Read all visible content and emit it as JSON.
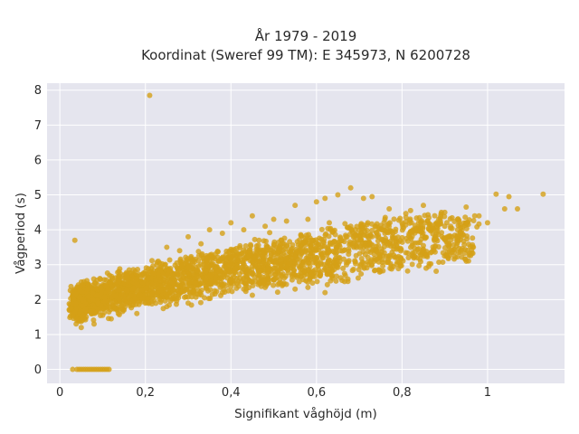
{
  "chart_data": {
    "type": "scatter",
    "title_line1": "År 1979 - 2019",
    "title_line2": "Koordinat (Sweref 99 TM): E 345973, N 6200728",
    "xlabel": "Signifikant våghöjd (m)",
    "ylabel": "Vågperiod (s)",
    "xlim": [
      -0.03,
      1.18
    ],
    "ylim": [
      -0.4,
      8.2
    ],
    "x_ticks": [
      0,
      0.2,
      0.4,
      0.6,
      0.8,
      1.0
    ],
    "x_tick_labels": [
      "0",
      "0,2",
      "0,4",
      "0,6",
      "0,8",
      "1"
    ],
    "y_ticks": [
      0,
      1,
      2,
      3,
      4,
      5,
      6,
      7,
      8
    ],
    "y_tick_labels": [
      "0",
      "1",
      "2",
      "3",
      "4",
      "5",
      "6",
      "7",
      "8"
    ],
    "grid": true,
    "marker_color": "#D4A017",
    "plot_bg": "#E5E5EE",
    "points": [
      [
        0.21,
        7.85
      ],
      [
        0.035,
        3.7
      ],
      [
        1.13,
        5.02
      ],
      [
        1.02,
        5.02
      ],
      [
        1.05,
        4.95
      ],
      [
        0.95,
        4.65
      ],
      [
        1.07,
        4.6
      ],
      [
        1.04,
        4.6
      ],
      [
        0.73,
        4.95
      ],
      [
        0.71,
        4.9
      ],
      [
        0.68,
        5.2
      ],
      [
        0.65,
        5.0
      ],
      [
        0.62,
        4.9
      ],
      [
        0.85,
        4.7
      ],
      [
        0.98,
        4.4
      ],
      [
        1.0,
        4.2
      ],
      [
        0.55,
        4.7
      ],
      [
        0.6,
        4.8
      ],
      [
        0.66,
        2.55
      ],
      [
        0.5,
        4.3
      ],
      [
        0.45,
        4.4
      ],
      [
        0.4,
        4.2
      ],
      [
        0.35,
        4.0
      ],
      [
        0.3,
        3.8
      ],
      [
        0.25,
        3.5
      ],
      [
        0.77,
        4.6
      ],
      [
        0.82,
        4.55
      ],
      [
        0.9,
        4.5
      ],
      [
        0.93,
        4.3
      ],
      [
        0.58,
        2.35
      ],
      [
        0.62,
        2.2
      ],
      [
        0.55,
        2.3
      ],
      [
        0.52,
        2.4
      ],
      [
        0.48,
        2.35
      ],
      [
        0.43,
        2.3
      ],
      [
        0.38,
        2.2
      ],
      [
        0.3,
        1.9
      ],
      [
        0.25,
        1.8
      ],
      [
        0.18,
        1.6
      ],
      [
        0.12,
        1.45
      ],
      [
        0.08,
        1.3
      ],
      [
        0.05,
        1.2
      ],
      [
        0.04,
        1.4
      ],
      [
        0.03,
        1.55
      ],
      [
        0.06,
        1.7
      ],
      [
        0.09,
        1.9
      ],
      [
        0.13,
        2.1
      ],
      [
        0.16,
        2.5
      ],
      [
        0.2,
        2.8
      ],
      [
        0.23,
        3.1
      ],
      [
        0.28,
        3.4
      ],
      [
        0.33,
        3.6
      ],
      [
        0.38,
        3.9
      ],
      [
        0.43,
        4.0
      ],
      [
        0.48,
        4.1
      ],
      [
        0.53,
        4.25
      ],
      [
        0.58,
        4.3
      ],
      [
        0.63,
        4.2
      ],
      [
        0.68,
        4.1
      ],
      [
        0.72,
        4.2
      ],
      [
        0.76,
        4.3
      ],
      [
        0.8,
        4.2
      ],
      [
        0.86,
        4.25
      ],
      [
        0.9,
        4.1
      ],
      [
        0.95,
        4.2
      ],
      [
        0.97,
        4.4
      ],
      [
        0.63,
        3.4
      ],
      [
        0.68,
        3.6
      ],
      [
        0.72,
        3.8
      ],
      [
        0.76,
        3.9
      ],
      [
        0.82,
        3.95
      ],
      [
        0.88,
        3.9
      ],
      [
        0.93,
        4.0
      ],
      [
        0.4,
        2.6
      ],
      [
        0.45,
        2.75
      ],
      [
        0.5,
        2.9
      ],
      [
        0.55,
        3.05
      ],
      [
        0.6,
        3.2
      ],
      [
        0.35,
        2.45
      ],
      [
        0.3,
        2.3
      ],
      [
        0.25,
        2.1
      ],
      [
        0.2,
        1.9
      ],
      [
        0.15,
        1.7
      ],
      [
        0.1,
        1.55
      ]
    ],
    "zero_points": [
      0.03,
      0.04,
      0.045,
      0.05,
      0.055,
      0.06,
      0.065,
      0.07,
      0.075,
      0.08,
      0.085,
      0.09,
      0.095,
      0.1,
      0.105,
      0.11,
      0.115
    ]
  }
}
